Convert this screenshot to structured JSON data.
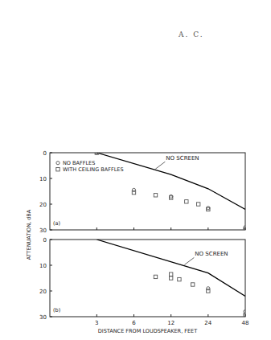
{
  "page_header": "A. C.",
  "ylabel": "ATTENUATION, dBA",
  "chart_data": [
    {
      "type": "scatter",
      "panel_label": "(a)",
      "log": "x",
      "xlim": [
        1.25,
        48
      ],
      "xticks": [
        3,
        6,
        12,
        24,
        48
      ],
      "ylim": [
        0,
        30
      ],
      "yticks": [
        0,
        10,
        20,
        30
      ],
      "tick_labels": "y",
      "legend": "upper left",
      "series": [
        {
          "name": "NO SCREEN",
          "type": "line",
          "color": "#000000",
          "line_style": "solid",
          "x": [
            3,
            12,
            24,
            48
          ],
          "values": [
            0,
            8.5,
            14,
            22
          ]
        },
        {
          "name": "NO BAFFLES",
          "type": "scatter",
          "marker": "circle",
          "color": "#555555",
          "x": [
            3,
            6,
            12,
            24,
            48
          ],
          "values": [
            0,
            14.5,
            17,
            21.5,
            29
          ]
        },
        {
          "name": "WITH CEILING BAFFLES",
          "type": "scatter",
          "marker": "square",
          "color": "#555555",
          "x": [
            3,
            6,
            9,
            12,
            16,
            20,
            24,
            48
          ],
          "values": [
            0,
            15.5,
            16.5,
            17.5,
            19,
            20,
            22,
            30
          ]
        }
      ]
    },
    {
      "type": "scatter",
      "panel_label": "(b)",
      "log": "x",
      "xlabel": "DISTANCE FROM LOUDSPEAKER, FEET",
      "xlim": [
        1.25,
        48
      ],
      "xticks": [
        3,
        6,
        12,
        24,
        48
      ],
      "ylim": [
        0,
        30
      ],
      "yticks": [
        0,
        10,
        20,
        30
      ],
      "tick_labels": true,
      "series": [
        {
          "name": "NO SCREEN",
          "type": "line",
          "color": "#000000",
          "line_style": "solid",
          "x": [
            3,
            24,
            48
          ],
          "values": [
            0,
            13,
            22
          ]
        },
        {
          "type": "scatter",
          "marker": "circle",
          "color": "#555555",
          "x": [
            24,
            48
          ],
          "values": [
            19,
            28
          ]
        },
        {
          "type": "scatter",
          "marker": "square",
          "color": "#555555",
          "x": [
            9,
            12,
            12,
            14,
            18,
            24,
            48
          ],
          "values": [
            14.5,
            13.5,
            15,
            15.5,
            17.5,
            20,
            29.5
          ]
        }
      ]
    }
  ]
}
